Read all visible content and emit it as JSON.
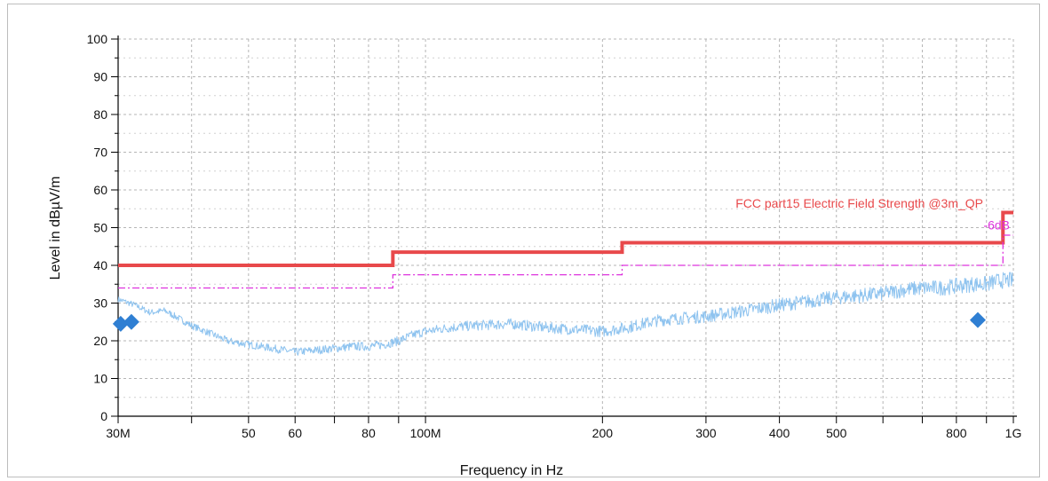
{
  "chart_data": {
    "type": "line",
    "xlabel": "Frequency in Hz",
    "ylabel": "Level in dBµV/m",
    "xscale": "log",
    "xlim": [
      30000000,
      1000000000
    ],
    "ylim": [
      0,
      100
    ],
    "grid": true,
    "y_ticks": [
      0,
      10,
      20,
      30,
      40,
      50,
      60,
      70,
      80,
      90,
      100
    ],
    "x_ticks": [
      {
        "value": 30000000,
        "label": "30M"
      },
      {
        "value": 50000000,
        "label": "50"
      },
      {
        "value": 60000000,
        "label": "60"
      },
      {
        "value": 80000000,
        "label": "80"
      },
      {
        "value": 100000000,
        "label": "100M"
      },
      {
        "value": 200000000,
        "label": "200"
      },
      {
        "value": 300000000,
        "label": "300"
      },
      {
        "value": 400000000,
        "label": "400"
      },
      {
        "value": 500000000,
        "label": "500"
      },
      {
        "value": 800000000,
        "label": "800"
      },
      {
        "value": 1000000000,
        "label": "1G"
      }
    ],
    "minor_x_ticks": [
      40000000,
      70000000,
      90000000,
      600000000,
      700000000,
      900000000
    ],
    "limits": [
      {
        "label": "FCC part15 Electric Field Strength @3m_QP",
        "color": "#e8494b",
        "style": "solid",
        "points": [
          [
            30000000,
            40
          ],
          [
            88000000,
            40
          ],
          [
            88000000,
            43.5
          ],
          [
            216000000,
            43.5
          ],
          [
            216000000,
            46
          ],
          [
            960000000,
            46
          ],
          [
            960000000,
            54
          ],
          [
            1000000000,
            54
          ]
        ]
      },
      {
        "label": "-6dB",
        "color": "#dd33dd",
        "style": "dashdot",
        "points": [
          [
            30000000,
            34
          ],
          [
            88000000,
            34
          ],
          [
            88000000,
            37.5
          ],
          [
            216000000,
            37.5
          ],
          [
            216000000,
            40
          ],
          [
            960000000,
            40
          ],
          [
            960000000,
            48
          ],
          [
            1000000000,
            48
          ]
        ]
      }
    ],
    "trace": {
      "color": "#8ec3ef",
      "points": [
        [
          30000000,
          31
        ],
        [
          32000000,
          29.5
        ],
        [
          34000000,
          27.5
        ],
        [
          36000000,
          28
        ],
        [
          38000000,
          26
        ],
        [
          40000000,
          24
        ],
        [
          43000000,
          22
        ],
        [
          46000000,
          20
        ],
        [
          50000000,
          19
        ],
        [
          55000000,
          18
        ],
        [
          60000000,
          17
        ],
        [
          65000000,
          17.5
        ],
        [
          70000000,
          18
        ],
        [
          75000000,
          18.5
        ],
        [
          80000000,
          18.5
        ],
        [
          85000000,
          19
        ],
        [
          90000000,
          20
        ],
        [
          95000000,
          21.5
        ],
        [
          100000000,
          22.5
        ],
        [
          110000000,
          23.5
        ],
        [
          120000000,
          24
        ],
        [
          140000000,
          24.5
        ],
        [
          160000000,
          23.5
        ],
        [
          180000000,
          23
        ],
        [
          200000000,
          22.5
        ],
        [
          220000000,
          23.5
        ],
        [
          250000000,
          25.5
        ],
        [
          300000000,
          26.5
        ],
        [
          350000000,
          28
        ],
        [
          400000000,
          29.5
        ],
        [
          450000000,
          30.5
        ],
        [
          500000000,
          31.5
        ],
        [
          550000000,
          32
        ],
        [
          600000000,
          32.5
        ],
        [
          650000000,
          33.5
        ],
        [
          700000000,
          34
        ],
        [
          750000000,
          34
        ],
        [
          800000000,
          34.5
        ],
        [
          850000000,
          35
        ],
        [
          900000000,
          35
        ],
        [
          950000000,
          36
        ],
        [
          1000000000,
          36
        ]
      ]
    },
    "markers": [
      {
        "x": 30300000,
        "y": 24.5
      },
      {
        "x": 31600000,
        "y": 25
      },
      {
        "x": 870000000,
        "y": 25.5
      }
    ],
    "marker_color": "#2f7fd3"
  }
}
